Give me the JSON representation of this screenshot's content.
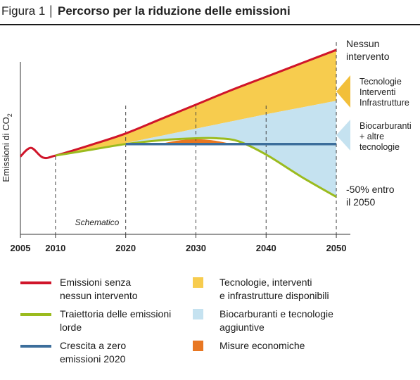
{
  "figure": {
    "number": "Figura 1",
    "separator": "|",
    "title": "Percorso per la riduzione delle emissioni"
  },
  "chart_data": {
    "type": "area",
    "schematic_note": "Schematico",
    "ylabel_main": "Emissioni di CO",
    "ylabel_sub": "2",
    "x_ticks": [
      "2005",
      "2010",
      "2020",
      "2030",
      "2040",
      "2050"
    ],
    "xlim": [
      2005,
      2052
    ],
    "ylim": [
      0,
      10
    ],
    "grid": "vertical dashed lines at 2010, 2020, 2030, 2040, 2050",
    "series": [
      {
        "name": "Emissioni senza nessun intervento",
        "color": "#d0152a",
        "x": [
          2005,
          2006.5,
          2008.2,
          2010,
          2015,
          2020,
          2025,
          2030,
          2035,
          2040,
          2045,
          2050
        ],
        "y": [
          4.05,
          4.5,
          4.0,
          4.1,
          4.65,
          5.25,
          6.0,
          6.75,
          7.5,
          8.2,
          8.9,
          9.6
        ]
      },
      {
        "name": "Traiettoria delle emissioni lorde",
        "color": "#9bbb1e",
        "x": [
          2010,
          2015,
          2020,
          2025,
          2030,
          2033,
          2036,
          2040,
          2045,
          2050
        ],
        "y": [
          4.1,
          4.4,
          4.7,
          4.9,
          5.0,
          5.0,
          4.85,
          4.15,
          3.0,
          1.95
        ]
      },
      {
        "name": "Crescita a zero emissioni 2020",
        "color": "#3c6e9b",
        "x": [
          2020,
          2050
        ],
        "y": [
          4.7,
          4.7
        ]
      }
    ],
    "areas": [
      {
        "name": "Tecnologie, interventi e infrastrutture disponibili",
        "color": "#f7cc4e",
        "lower": "Biocarburanti upper bound",
        "upper": "Emissioni senza nessun intervento"
      },
      {
        "name": "Biocarburanti e tecnologie aggiuntive",
        "color": "#c5e2f0",
        "x": [
          2010,
          2020,
          2030,
          2040,
          2050
        ],
        "upper": [
          4.1,
          4.75,
          5.5,
          6.25,
          6.95
        ]
      },
      {
        "name": "Misure economiche",
        "color": "#e87722",
        "x": [
          2025,
          2030,
          2035
        ],
        "upper": [
          4.7,
          4.95,
          4.7
        ]
      }
    ],
    "annotations": [
      {
        "id": "nessun",
        "lines": [
          "Nessun",
          "intervento"
        ]
      },
      {
        "id": "tecnologie",
        "lines": [
          "Tecnologie",
          "Interventi",
          "Infrastrutture"
        ]
      },
      {
        "id": "biocarb",
        "lines": [
          "Biocarburanti",
          "+ altre",
          "tecnologie"
        ]
      },
      {
        "id": "riduzione",
        "lines": [
          "-50% entro",
          "il 2050"
        ]
      }
    ]
  },
  "legend": [
    {
      "kind": "line",
      "color": "#d0152a",
      "label": "Emissioni senza\nnessun intervento"
    },
    {
      "kind": "line",
      "color": "#9bbb1e",
      "label": "Traiettoria delle emissioni\nlorde"
    },
    {
      "kind": "line",
      "color": "#3c6e9b",
      "label": "Crescita a zero\nemissioni 2020"
    },
    {
      "kind": "box",
      "color": "#f7cc4e",
      "label": "Tecnologie, interventi\ne infrastrutture disponibili"
    },
    {
      "kind": "box",
      "color": "#c5e2f0",
      "label": "Biocarburanti e tecnologie\naggiuntive"
    },
    {
      "kind": "box",
      "color": "#e87722",
      "label": "Misure economiche"
    }
  ]
}
